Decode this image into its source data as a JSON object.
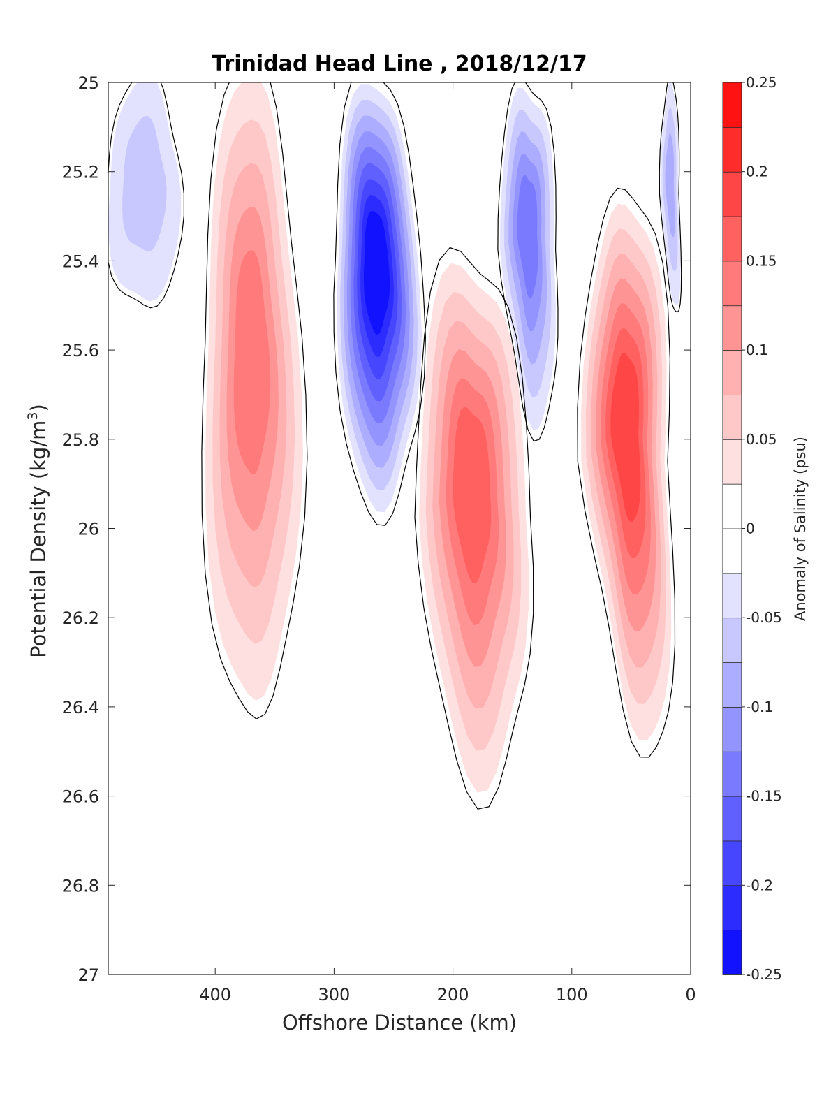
{
  "chart_data": {
    "type": "heatmap",
    "subtype": "filled-contour",
    "title": "Trinidad Head Line , 2018/12/17",
    "xlabel": "Offshore Distance (km)",
    "ylabel": "Potential Density (kg/m",
    "ylabel_sup": "3",
    "ylabel_close": ")",
    "xlim": [
      490,
      0
    ],
    "x_reversed": true,
    "ylim": [
      25,
      27
    ],
    "y_reversed": true,
    "xticks": [
      400,
      300,
      200,
      100,
      0
    ],
    "yticks": [
      25,
      25.2,
      25.4,
      25.6,
      25.8,
      26,
      26.2,
      26.4,
      26.6,
      26.8,
      27
    ],
    "grid": false,
    "zero_contour_color": "#000000",
    "colorbar": {
      "label": "Anomaly of Salinity (psu)",
      "range": [
        -0.25,
        0.25
      ],
      "step": 0.025,
      "ticks": [
        0.25,
        0.2,
        0.15,
        0.1,
        0.05,
        0,
        -0.05,
        -0.1,
        -0.15,
        -0.2,
        -0.25
      ],
      "colors_positive_low_to_high": [
        "#ffe0e0",
        "#ffc8c8",
        "#ffb0b0",
        "#ff9494",
        "#ff7a7a",
        "#ff6060",
        "#ff4646",
        "#ff2c2c",
        "#ff1212",
        "#ff0000"
      ],
      "colors_negative_low_to_high": [
        "#e2e2ff",
        "#c8c8ff",
        "#adadff",
        "#9494ff",
        "#7a7aff",
        "#6060ff",
        "#4646ff",
        "#2c2cff",
        "#1212ff",
        "#0000ff"
      ]
    },
    "features": [
      {
        "name": "low salinity, offshore top",
        "x": [
          490,
          430
        ],
        "y": [
          25.0,
          25.5
        ],
        "peak": -0.05
      },
      {
        "name": "high salinity column",
        "x": [
          410,
          330
        ],
        "y": [
          25.0,
          26.4
        ],
        "peak": 0.125
      },
      {
        "name": "low salinity core",
        "x": [
          300,
          230
        ],
        "y": [
          25.0,
          25.95
        ],
        "peak": -0.225
      },
      {
        "name": "high salinity core",
        "x": [
          230,
          140
        ],
        "y": [
          25.4,
          26.55
        ],
        "peak": 0.15
      },
      {
        "name": "low salinity filament",
        "x": [
          160,
          115
        ],
        "y": [
          25.0,
          25.75
        ],
        "peak": -0.125
      },
      {
        "name": "high salinity core, nearshore",
        "x": [
          90,
          20
        ],
        "y": [
          25.25,
          26.45
        ],
        "peak": 0.175
      },
      {
        "name": "low salinity, nearshore top",
        "x": [
          25,
          10
        ],
        "y": [
          25.0,
          25.5
        ],
        "peak": -0.075
      }
    ]
  }
}
